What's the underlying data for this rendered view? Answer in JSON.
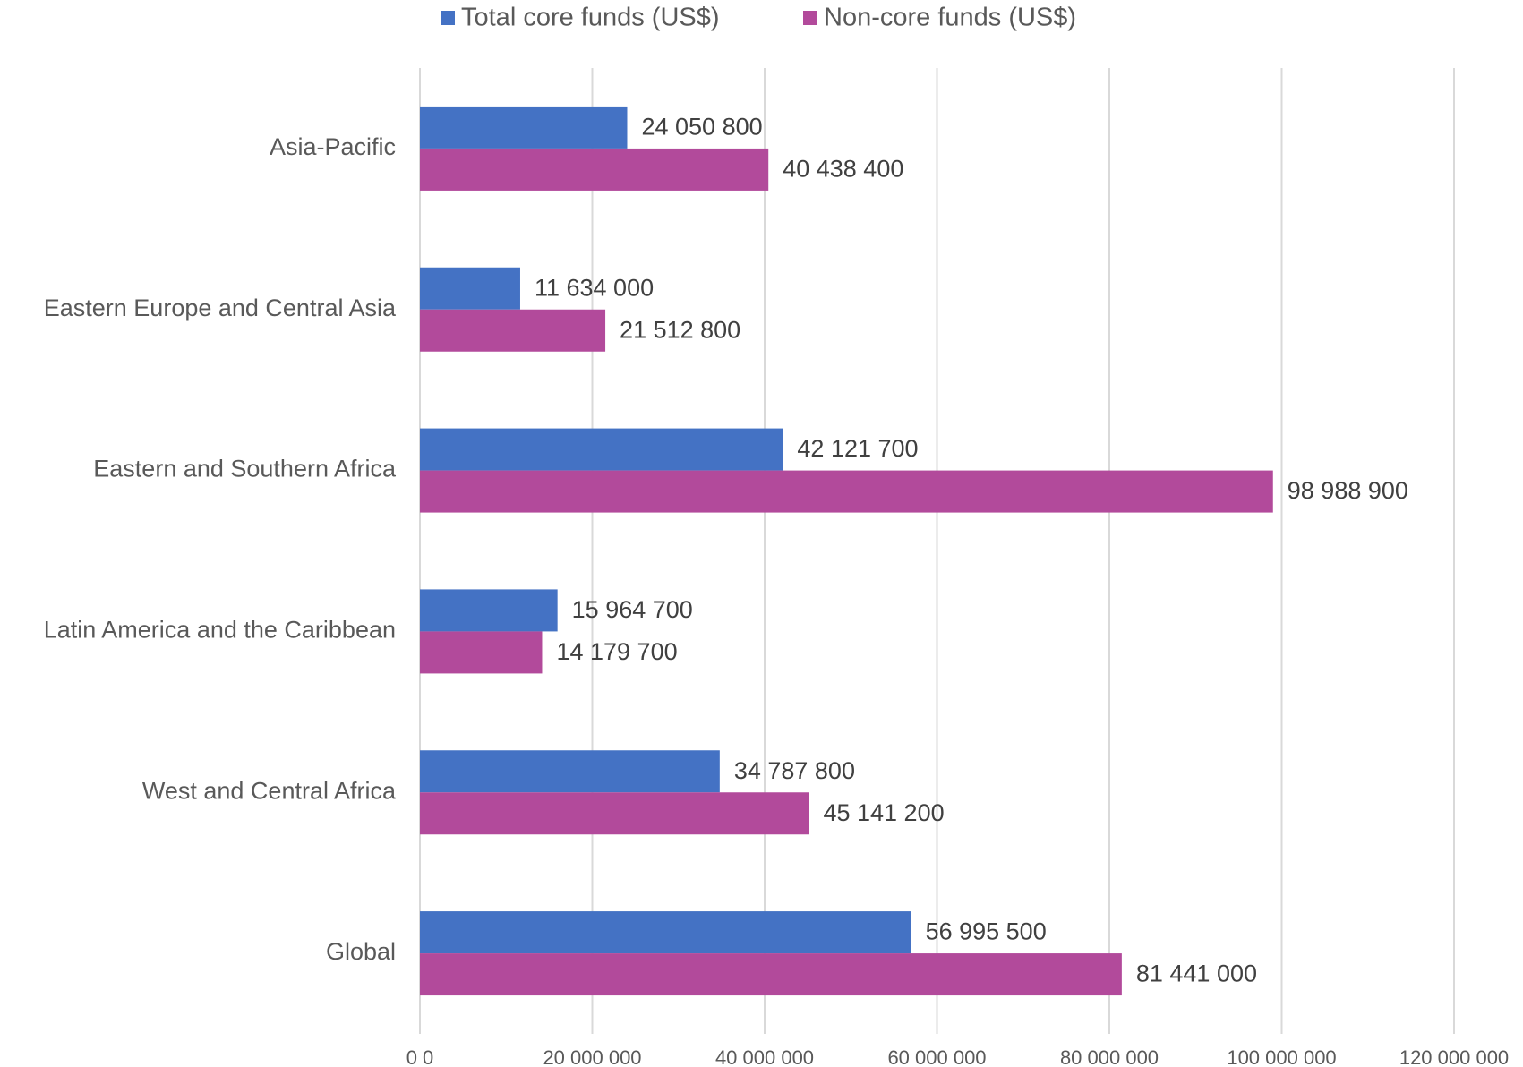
{
  "chart_data": {
    "type": "bar",
    "orientation": "horizontal",
    "categories": [
      "Asia-Pacific",
      "Eastern Europe and Central Asia",
      "Eastern and Southern Africa",
      "Latin America and the Caribbean",
      "West and Central Africa",
      "Global"
    ],
    "series": [
      {
        "name": "Total core funds (US$)",
        "color": "#4472c4",
        "values": [
          24050800,
          11634000,
          42121700,
          15964700,
          34787800,
          56995500
        ],
        "value_labels": [
          "24 050 800",
          "11 634 000",
          "42 121 700",
          "15 964 700",
          "34 787 800",
          "56 995 500"
        ]
      },
      {
        "name": "Non-core funds (US$)",
        "color": "#b24a9b",
        "values": [
          40438400,
          21512800,
          98988900,
          14179700,
          45141200,
          81441000
        ],
        "value_labels": [
          "40 438 400",
          "21 512 800",
          "98 988 900",
          "14 179 700",
          "45 141 200",
          "81 441 000"
        ]
      }
    ],
    "xlim": [
      0,
      120000000
    ],
    "xticks": [
      {
        "value": 0,
        "label": "0 0"
      },
      {
        "value": 20000000,
        "label": "20 000 000"
      },
      {
        "value": 40000000,
        "label": "40 000 000"
      },
      {
        "value": 60000000,
        "label": "60 000 000"
      },
      {
        "value": 80000000,
        "label": "80 000 000"
      },
      {
        "value": 100000000,
        "label": "100 000 000"
      },
      {
        "value": 120000000,
        "label": "120 000 000"
      }
    ],
    "grid": true,
    "legend": "top"
  }
}
